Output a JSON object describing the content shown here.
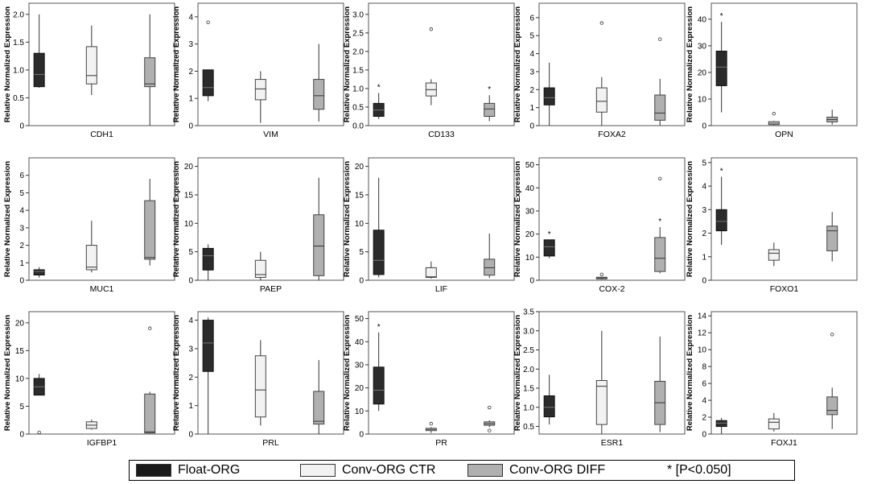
{
  "colors": {
    "Float-ORG": "#2b2b2b",
    "Conv-ORG CTR": "#f2f2f2",
    "Conv-ORG DIFF": "#b0b0b0"
  },
  "legend": {
    "float": "Float-ORG",
    "ctr": "Conv-ORG CTR",
    "diff": "Conv-ORG DIFF",
    "sig": "* [P<0.050]"
  },
  "chart_data": [
    {
      "type": "box",
      "title": "CDH1",
      "ylabel": "Relative Normalized Expression",
      "ylim": [
        0,
        2.2
      ],
      "yticks": [
        0,
        0.5,
        1.0,
        1.5,
        2.0
      ],
      "ytick_labels": [
        "0",
        "0.5",
        "1.0",
        "1.5",
        "2.0"
      ],
      "series": [
        {
          "name": "Float-ORG",
          "min": 0.68,
          "q1": 0.7,
          "median": 0.92,
          "q3": 1.3,
          "max": 2.0,
          "outliers": []
        },
        {
          "name": "Conv-ORG CTR",
          "min": 0.55,
          "q1": 0.75,
          "median": 0.9,
          "q3": 1.42,
          "max": 1.8,
          "outliers": []
        },
        {
          "name": "Conv-ORG DIFF",
          "min": 0.0,
          "q1": 0.7,
          "median": 0.75,
          "q3": 1.22,
          "max": 2.0,
          "outliers": []
        }
      ]
    },
    {
      "type": "box",
      "title": "VIM",
      "ylabel": "Relative Normalized Expression",
      "ylim": [
        0,
        4.5
      ],
      "yticks": [
        0,
        1,
        2,
        3,
        4
      ],
      "ytick_labels": [
        "0",
        "1",
        "2",
        "3",
        "4"
      ],
      "series": [
        {
          "name": "Float-ORG",
          "min": 0.9,
          "q1": 1.1,
          "median": 1.4,
          "q3": 2.05,
          "max": 2.05,
          "outliers": [
            3.8
          ]
        },
        {
          "name": "Conv-ORG CTR",
          "min": 0.1,
          "q1": 0.95,
          "median": 1.35,
          "q3": 1.7,
          "max": 2.0,
          "outliers": []
        },
        {
          "name": "Conv-ORG DIFF",
          "min": 0.15,
          "q1": 0.6,
          "median": 1.1,
          "q3": 1.7,
          "max": 3.0,
          "outliers": []
        }
      ]
    },
    {
      "type": "box",
      "title": "CD133",
      "ylabel": "Relative Normalized Expression",
      "ylim": [
        0,
        3.3
      ],
      "yticks": [
        0,
        0.5,
        1.0,
        1.5,
        2.0,
        2.5,
        3.0
      ],
      "ytick_labels": [
        "0.0",
        "0.5",
        "1.0",
        "1.5",
        "2.0",
        "2.5",
        "3.0"
      ],
      "series": [
        {
          "name": "Float-ORG",
          "min": 0.18,
          "q1": 0.25,
          "median": 0.42,
          "q3": 0.6,
          "max": 0.88,
          "outliers": [],
          "sig": true
        },
        {
          "name": "Conv-ORG CTR",
          "min": 0.55,
          "q1": 0.8,
          "median": 0.97,
          "q3": 1.15,
          "max": 1.25,
          "outliers": [
            2.6
          ]
        },
        {
          "name": "Conv-ORG DIFF",
          "min": 0.12,
          "q1": 0.25,
          "median": 0.45,
          "q3": 0.6,
          "max": 0.82,
          "outliers": [],
          "sig": true
        }
      ]
    },
    {
      "type": "box",
      "title": "FOXA2",
      "ylabel": "Relative Normalized Expression",
      "ylim": [
        0,
        6.8
      ],
      "yticks": [
        0,
        1,
        2,
        3,
        4,
        5,
        6
      ],
      "ytick_labels": [
        "0",
        "1",
        "2",
        "3",
        "4",
        "5",
        "6"
      ],
      "series": [
        {
          "name": "Float-ORG",
          "min": 0.0,
          "q1": 1.15,
          "median": 1.55,
          "q3": 2.1,
          "max": 3.5,
          "outliers": []
        },
        {
          "name": "Conv-ORG CTR",
          "min": 0.0,
          "q1": 0.75,
          "median": 1.35,
          "q3": 2.1,
          "max": 2.7,
          "outliers": [
            5.7
          ]
        },
        {
          "name": "Conv-ORG DIFF",
          "min": 0.0,
          "q1": 0.3,
          "median": 0.7,
          "q3": 1.7,
          "max": 2.6,
          "outliers": [
            4.8
          ]
        }
      ]
    },
    {
      "type": "box",
      "title": "OPN",
      "ylabel": "Relative Normalized Expression",
      "ylim": [
        0,
        46
      ],
      "yticks": [
        0,
        10,
        20,
        30,
        40
      ],
      "ytick_labels": [
        "0",
        "10",
        "20",
        "30",
        "40"
      ],
      "series": [
        {
          "name": "Float-ORG",
          "min": 5,
          "q1": 15,
          "median": 22,
          "q3": 28,
          "max": 39,
          "outliers": [],
          "sig": true
        },
        {
          "name": "Conv-ORG CTR",
          "min": 0.1,
          "q1": 0.4,
          "median": 0.9,
          "q3": 1.5,
          "max": 1.8,
          "outliers": [
            4.5
          ]
        },
        {
          "name": "Conv-ORG DIFF",
          "min": 0.4,
          "q1": 1.4,
          "median": 2.3,
          "q3": 3.2,
          "max": 6.0,
          "outliers": []
        }
      ]
    },
    {
      "type": "box",
      "title": "MUC1",
      "ylabel": "Relative Normalized Expression",
      "ylim": [
        0,
        7
      ],
      "yticks": [
        0,
        1,
        2,
        3,
        4,
        5,
        6
      ],
      "ytick_labels": [
        "0",
        "1",
        "2",
        "3",
        "4",
        "5",
        "6"
      ],
      "series": [
        {
          "name": "Float-ORG",
          "min": 0.15,
          "q1": 0.3,
          "median": 0.5,
          "q3": 0.6,
          "max": 0.75,
          "outliers": []
        },
        {
          "name": "Conv-ORG CTR",
          "min": 0.45,
          "q1": 0.6,
          "median": 0.75,
          "q3": 2.0,
          "max": 3.4,
          "outliers": []
        },
        {
          "name": "Conv-ORG DIFF",
          "min": 0.85,
          "q1": 1.2,
          "median": 1.3,
          "q3": 4.55,
          "max": 5.8,
          "outliers": []
        }
      ]
    },
    {
      "type": "box",
      "title": "PAEP",
      "ylabel": "Relative Normalized Expression",
      "ylim": [
        0,
        21.5
      ],
      "yticks": [
        0,
        5,
        10,
        15,
        20
      ],
      "ytick_labels": [
        "0",
        "5",
        "10",
        "15",
        "20"
      ],
      "series": [
        {
          "name": "Float-ORG",
          "min": 0.0,
          "q1": 1.8,
          "median": 4.3,
          "q3": 5.6,
          "max": 6.3,
          "outliers": []
        },
        {
          "name": "Conv-ORG CTR",
          "min": 0.0,
          "q1": 0.5,
          "median": 1.0,
          "q3": 3.5,
          "max": 5.0,
          "outliers": []
        },
        {
          "name": "Conv-ORG DIFF",
          "min": 0.0,
          "q1": 0.8,
          "median": 6.0,
          "q3": 11.5,
          "max": 18.0,
          "outliers": []
        }
      ]
    },
    {
      "type": "box",
      "title": "LIF",
      "ylabel": "Relative Normalized Expression",
      "ylim": [
        0,
        21.5
      ],
      "yticks": [
        0,
        5,
        10,
        15,
        20
      ],
      "ytick_labels": [
        "0",
        "5",
        "10",
        "15",
        "20"
      ],
      "series": [
        {
          "name": "Float-ORG",
          "min": 0.5,
          "q1": 1.0,
          "median": 3.5,
          "q3": 8.8,
          "max": 18.0,
          "outliers": []
        },
        {
          "name": "Conv-ORG CTR",
          "min": 0.3,
          "q1": 0.5,
          "median": 0.6,
          "q3": 2.2,
          "max": 3.3,
          "outliers": []
        },
        {
          "name": "Conv-ORG DIFF",
          "min": 0.4,
          "q1": 0.9,
          "median": 2.2,
          "q3": 3.7,
          "max": 8.2,
          "outliers": []
        }
      ]
    },
    {
      "type": "box",
      "title": "COX-2",
      "ylabel": "Relative Normalized Expression",
      "ylim": [
        0,
        53
      ],
      "yticks": [
        0,
        10,
        20,
        30,
        40,
        50
      ],
      "ytick_labels": [
        "0",
        "10",
        "20",
        "30",
        "40",
        "50"
      ],
      "series": [
        {
          "name": "Float-ORG",
          "min": 9.5,
          "q1": 10.5,
          "median": 14.5,
          "q3": 17.5,
          "max": 17.5,
          "outliers": [],
          "sig": true
        },
        {
          "name": "Conv-ORG CTR",
          "min": 0.3,
          "q1": 0.6,
          "median": 1.0,
          "q3": 1.3,
          "max": 1.5,
          "outliers": [
            2.5
          ]
        },
        {
          "name": "Conv-ORG DIFF",
          "min": 3.0,
          "q1": 3.8,
          "median": 9.5,
          "q3": 18.5,
          "max": 23.0,
          "outliers": [
            44
          ],
          "sig": true
        }
      ]
    },
    {
      "type": "box",
      "title": "FOXO1",
      "ylabel": "Relative Normalized Expression",
      "ylim": [
        0,
        5.2
      ],
      "yticks": [
        0,
        1,
        2,
        3,
        4,
        5
      ],
      "ytick_labels": [
        "0",
        "1",
        "2",
        "3",
        "4",
        "5"
      ],
      "series": [
        {
          "name": "Float-ORG",
          "min": 1.5,
          "q1": 2.1,
          "median": 2.5,
          "q3": 3.0,
          "max": 4.4,
          "outliers": [],
          "sig": true
        },
        {
          "name": "Conv-ORG CTR",
          "min": 0.6,
          "q1": 0.85,
          "median": 1.15,
          "q3": 1.3,
          "max": 1.6,
          "outliers": []
        },
        {
          "name": "Conv-ORG DIFF",
          "min": 0.8,
          "q1": 1.25,
          "median": 2.1,
          "q3": 2.3,
          "max": 2.9,
          "outliers": []
        }
      ]
    },
    {
      "type": "box",
      "title": "IGFBP1",
      "ylabel": "Relative Normalized Expression",
      "ylim": [
        0,
        22
      ],
      "yticks": [
        0,
        5,
        10,
        15,
        20
      ],
      "ytick_labels": [
        "0",
        "5",
        "10",
        "15",
        "20"
      ],
      "series": [
        {
          "name": "Float-ORG",
          "min": 7.0,
          "q1": 7.0,
          "median": 8.5,
          "q3": 10.0,
          "max": 10.8,
          "outliers": [
            0.3
          ]
        },
        {
          "name": "Conv-ORG CTR",
          "min": 0.8,
          "q1": 1.0,
          "median": 1.6,
          "q3": 2.2,
          "max": 2.6,
          "outliers": []
        },
        {
          "name": "Conv-ORG DIFF",
          "min": 0.1,
          "q1": 0.2,
          "median": 0.4,
          "q3": 7.2,
          "max": 7.6,
          "outliers": [
            19
          ]
        }
      ]
    },
    {
      "type": "box",
      "title": "PRL",
      "ylabel": "Relative Normalized Expression",
      "ylim": [
        0,
        4.3
      ],
      "yticks": [
        0,
        1,
        2,
        3,
        4
      ],
      "ytick_labels": [
        "0",
        "1",
        "2",
        "3",
        "4"
      ],
      "series": [
        {
          "name": "Float-ORG",
          "min": 0.0,
          "q1": 2.2,
          "median": 3.2,
          "q3": 4.0,
          "max": 4.1,
          "outliers": []
        },
        {
          "name": "Conv-ORG CTR",
          "min": 0.3,
          "q1": 0.6,
          "median": 1.55,
          "q3": 2.75,
          "max": 3.3,
          "outliers": []
        },
        {
          "name": "Conv-ORG DIFF",
          "min": 0.0,
          "q1": 0.35,
          "median": 0.45,
          "q3": 1.5,
          "max": 2.6,
          "outliers": []
        }
      ]
    },
    {
      "type": "box",
      "title": "PR",
      "ylabel": "Relative Normalized Expression",
      "ylim": [
        0,
        53
      ],
      "yticks": [
        0,
        10,
        20,
        30,
        40,
        50
      ],
      "ytick_labels": [
        "0",
        "10",
        "20",
        "30",
        "40",
        "50"
      ],
      "series": [
        {
          "name": "Float-ORG",
          "min": 10,
          "q1": 13,
          "median": 19,
          "q3": 29,
          "max": 44,
          "outliers": [],
          "sig": true
        },
        {
          "name": "Conv-ORG CTR",
          "min": 0.5,
          "q1": 1.5,
          "median": 2.0,
          "q3": 2.5,
          "max": 3.0,
          "outliers": [
            4.5
          ]
        },
        {
          "name": "Conv-ORG DIFF",
          "min": 3.0,
          "q1": 3.8,
          "median": 4.5,
          "q3": 5.3,
          "max": 6.0,
          "outliers": [
            11.5,
            1.5
          ]
        }
      ]
    },
    {
      "type": "box",
      "title": "ESR1",
      "ylabel": "Relative Normalized Expression",
      "ylim": [
        0.3,
        3.5
      ],
      "yticks": [
        0.5,
        1.0,
        1.5,
        2.0,
        2.5,
        3.0,
        3.5
      ],
      "ytick_labels": [
        "0.5",
        "1.0",
        "1.5",
        "2.0",
        "2.5",
        "3.0",
        "3.5"
      ],
      "series": [
        {
          "name": "Float-ORG",
          "min": 0.55,
          "q1": 0.75,
          "median": 1.0,
          "q3": 1.3,
          "max": 1.85,
          "outliers": []
        },
        {
          "name": "Conv-ORG CTR",
          "min": 0.3,
          "q1": 0.55,
          "median": 1.55,
          "q3": 1.7,
          "max": 3.0,
          "outliers": []
        },
        {
          "name": "Conv-ORG DIFF",
          "min": 0.35,
          "q1": 0.55,
          "median": 1.12,
          "q3": 1.68,
          "max": 2.85,
          "outliers": []
        }
      ]
    },
    {
      "type": "box",
      "title": "FOXJ1",
      "ylabel": "Relative Normalized Expression",
      "ylim": [
        0,
        14.5
      ],
      "yticks": [
        0,
        2,
        4,
        6,
        8,
        10,
        12,
        14
      ],
      "ytick_labels": [
        "0",
        "2",
        "4",
        "6",
        "8",
        "10",
        "12",
        "14"
      ],
      "series": [
        {
          "name": "Float-ORG",
          "min": 0.0,
          "q1": 0.9,
          "median": 1.3,
          "q3": 1.6,
          "max": 1.9,
          "outliers": []
        },
        {
          "name": "Conv-ORG CTR",
          "min": 0.3,
          "q1": 0.6,
          "median": 1.4,
          "q3": 1.8,
          "max": 2.5,
          "outliers": []
        },
        {
          "name": "Conv-ORG DIFF",
          "min": 0.6,
          "q1": 2.3,
          "median": 2.8,
          "q3": 4.4,
          "max": 5.5,
          "outliers": [
            11.8
          ]
        }
      ]
    }
  ]
}
